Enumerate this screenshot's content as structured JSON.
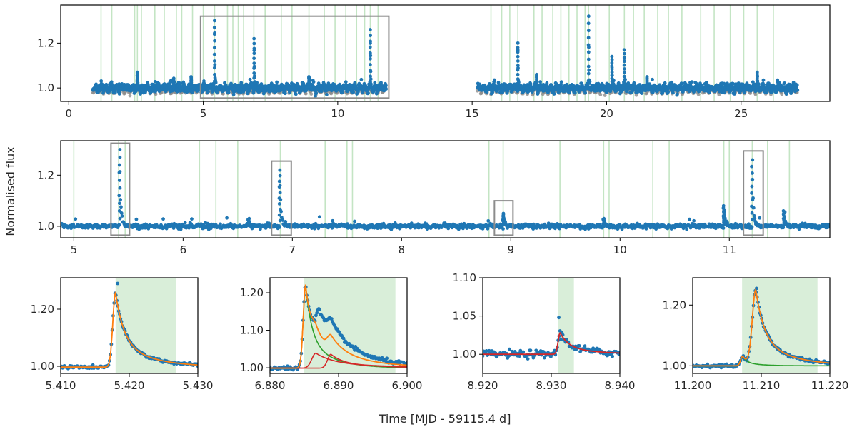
{
  "figure": {
    "ylabel": "Normalised flux",
    "xlabel": "Time [MJD - 59115.4 d]"
  },
  "colors": {
    "data": "#1f77b4",
    "model_total": "#ff7f0e",
    "model_comp1": "#2ca02c",
    "model_comp2": "#d62728",
    "flare_region": "#2ca02c",
    "zoom_box": "#8c8c8c",
    "background_points": "#8c8c8c"
  },
  "chart_data": [
    {
      "id": "overview",
      "type": "scatter",
      "xlim": [
        -0.3,
        28.3
      ],
      "ylim": [
        0.94,
        1.37
      ],
      "xticks": [
        0,
        5,
        10,
        15,
        20,
        25
      ],
      "xtick_labels": [
        "0",
        "5",
        "10",
        "15",
        "20",
        "25"
      ],
      "yticks": [
        1.0,
        1.2
      ],
      "ytick_labels": [
        "1.0",
        "1.2"
      ],
      "segments": [
        [
          0.9,
          11.8
        ],
        [
          15.2,
          27.1
        ]
      ],
      "baseline": 1.0,
      "flares": [
        {
          "t": 2.55,
          "amp": 0.07
        },
        {
          "t": 3.9,
          "amp": 0.04
        },
        {
          "t": 4.55,
          "amp": 0.05
        },
        {
          "t": 5.42,
          "amp": 0.3
        },
        {
          "t": 6.89,
          "amp": 0.22
        },
        {
          "t": 8.93,
          "amp": 0.05
        },
        {
          "t": 11.21,
          "amp": 0.26
        },
        {
          "t": 16.7,
          "amp": 0.2
        },
        {
          "t": 17.4,
          "amp": 0.06
        },
        {
          "t": 19.33,
          "amp": 0.32
        },
        {
          "t": 20.2,
          "amp": 0.14
        },
        {
          "t": 20.66,
          "amp": 0.17
        },
        {
          "t": 21.5,
          "amp": 0.05
        },
        {
          "t": 25.6,
          "amp": 0.07
        }
      ],
      "zoom_box": {
        "x0": 4.9,
        "x1": 11.9,
        "y0": 0.955,
        "y1": 1.32
      },
      "flare_marker_times": [
        1.2,
        1.6,
        2.45,
        2.55,
        2.7,
        3.2,
        3.55,
        4.0,
        4.2,
        4.6,
        5.0,
        5.42,
        5.9,
        6.1,
        6.3,
        6.5,
        6.88,
        7.3,
        7.9,
        8.3,
        8.93,
        9.5,
        9.9,
        10.3,
        10.7,
        11.0,
        11.21,
        11.5,
        15.7,
        16.1,
        16.4,
        16.7,
        17.3,
        17.6,
        18.0,
        18.3,
        18.6,
        18.9,
        19.2,
        19.33,
        19.6,
        20.1,
        20.66,
        21.0,
        21.4,
        21.9,
        22.3,
        22.8,
        23.5,
        24.0,
        24.6,
        25.1,
        25.6,
        26.2
      ]
    },
    {
      "id": "zoom",
      "type": "scatter",
      "xlim": [
        4.88,
        11.92
      ],
      "ylim": [
        0.955,
        1.335
      ],
      "xticks": [
        5,
        6,
        7,
        8,
        9,
        10,
        11
      ],
      "xtick_labels": [
        "5",
        "6",
        "7",
        "8",
        "9",
        "10",
        "11"
      ],
      "yticks": [
        1.0,
        1.2
      ],
      "ytick_labels": [
        "1.0",
        "1.2"
      ],
      "baseline": 1.0,
      "flares": [
        {
          "t": 5.418,
          "amp": 0.3
        },
        {
          "t": 6.885,
          "amp": 0.22
        },
        {
          "t": 8.931,
          "amp": 0.05
        },
        {
          "t": 11.209,
          "amp": 0.26
        },
        {
          "t": 10.95,
          "amp": 0.08
        },
        {
          "t": 11.5,
          "amp": 0.06
        },
        {
          "t": 9.85,
          "amp": 0.03
        },
        {
          "t": 6.6,
          "amp": 0.03
        }
      ],
      "boxes": [
        {
          "x0": 5.34,
          "x1": 5.51,
          "y0": 0.965,
          "y1": 1.325
        },
        {
          "x0": 6.81,
          "x1": 6.99,
          "y0": 0.965,
          "y1": 1.255
        },
        {
          "x0": 8.85,
          "x1": 9.02,
          "y0": 0.965,
          "y1": 1.1
        },
        {
          "x0": 11.13,
          "x1": 11.31,
          "y0": 0.965,
          "y1": 1.295
        }
      ],
      "flare_marker_times": [
        5.0,
        5.41,
        5.47,
        6.15,
        6.3,
        6.5,
        6.89,
        7.3,
        7.5,
        7.55,
        8.8,
        8.93,
        9.45,
        9.85,
        9.9,
        10.3,
        10.45,
        10.95,
        11.0,
        11.21,
        11.35,
        11.55
      ]
    },
    {
      "id": "flare1",
      "type": "line",
      "xlim": [
        5.41,
        5.43
      ],
      "ylim": [
        0.975,
        1.31
      ],
      "xticks": [
        5.41,
        5.42,
        5.43
      ],
      "xtick_labels": [
        "5.410",
        "5.420",
        "5.430"
      ],
      "yticks": [
        1.0,
        1.2
      ],
      "ytick_labels": [
        "1.00",
        "1.20"
      ],
      "baseline": 0.997,
      "region": [
        5.418,
        5.4268
      ],
      "components": [
        {
          "t0": 5.418,
          "amp": 0.26,
          "tau": 0.0012,
          "rise": 0.0004
        }
      ],
      "show_components": false,
      "outliers": [
        {
          "x": 5.4183,
          "y": 1.29
        }
      ]
    },
    {
      "id": "flare2",
      "type": "line",
      "xlim": [
        6.88,
        6.9
      ],
      "ylim": [
        0.985,
        1.24
      ],
      "xticks": [
        6.88,
        6.89,
        6.9
      ],
      "xtick_labels": [
        "6.880",
        "6.890",
        "6.900"
      ],
      "yticks": [
        1.0,
        1.1,
        1.2
      ],
      "ytick_labels": [
        "1.00",
        "1.10",
        "1.20"
      ],
      "baseline": 0.999,
      "region": [
        6.885,
        6.8983
      ],
      "components": [
        {
          "t0": 6.8852,
          "amp": 0.22,
          "tau": 0.0009,
          "rise": 0.00035
        },
        {
          "t0": 6.8867,
          "amp": 0.04,
          "tau": 0.0025,
          "rise": 0.0006
        },
        {
          "t0": 6.8889,
          "amp": 0.037,
          "tau": 0.0018,
          "rise": 0.0005
        }
      ],
      "show_components": true,
      "data_excess": {
        "t0": 6.8865,
        "amp": 0.07,
        "tau": 0.0045
      }
    },
    {
      "id": "flare3",
      "type": "line",
      "xlim": [
        8.92,
        8.94
      ],
      "ylim": [
        0.975,
        1.1
      ],
      "xticks": [
        8.92,
        8.93,
        8.94
      ],
      "xtick_labels": [
        "8.920",
        "8.930",
        "8.940"
      ],
      "yticks": [
        1.0,
        1.05,
        1.1
      ],
      "ytick_labels": [
        "1.00",
        "1.05",
        "1.10"
      ],
      "baseline": 1.0,
      "region": [
        8.931,
        8.9333
      ],
      "components": [
        {
          "t0": 8.9313,
          "amp": 0.028,
          "tau": 0.0012,
          "rise": 0.0003
        }
      ],
      "show_components": false,
      "model_color": "model_comp2",
      "outliers": [
        {
          "x": 8.9311,
          "y": 1.048
        }
      ]
    },
    {
      "id": "flare4",
      "type": "line",
      "xlim": [
        11.2,
        11.22
      ],
      "ylim": [
        0.975,
        1.29
      ],
      "xticks": [
        11.2,
        11.21,
        11.22
      ],
      "xtick_labels": [
        "11.200",
        "11.210",
        "11.220"
      ],
      "yticks": [
        1.0,
        1.2
      ],
      "ytick_labels": [
        "1.00",
        "1.20"
      ],
      "baseline": 1.0,
      "region": [
        11.2072,
        11.2182
      ],
      "components": [
        {
          "t0": 11.2073,
          "amp": 0.032,
          "tau": 0.0006,
          "rise": 0.0003
        },
        {
          "t0": 11.2092,
          "amp": 0.245,
          "tau": 0.0012,
          "rise": 0.0005
        }
      ],
      "show_components": true,
      "outliers": [
        {
          "x": 11.2093,
          "y": 1.255
        }
      ]
    }
  ]
}
